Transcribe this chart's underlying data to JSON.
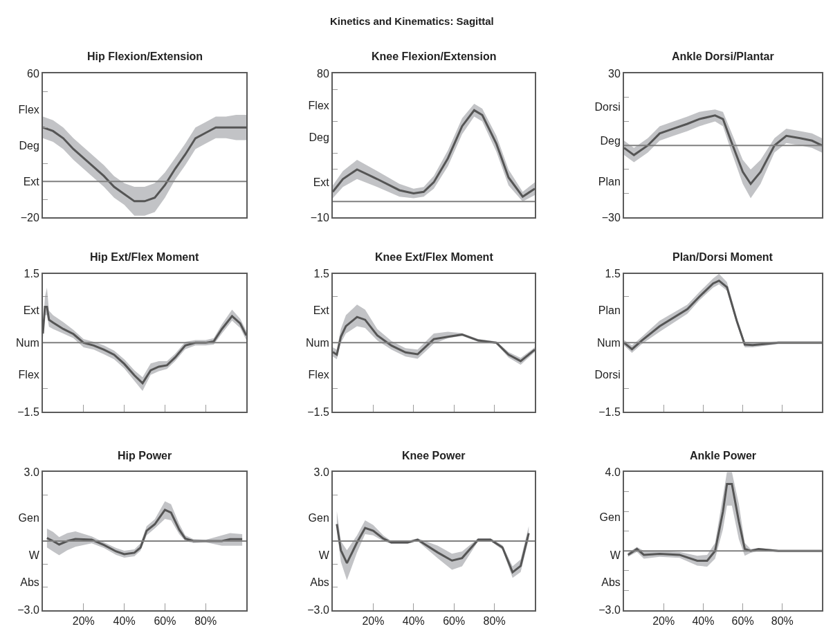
{
  "chart_data": [
    {
      "type": "line",
      "title": "Hip Flexion/Extension",
      "annotations": [
        "Kinetics and Kinematics: Sagittal"
      ],
      "xlim": [
        0,
        100
      ],
      "ylim": [
        -20,
        60
      ],
      "tick_labels": "y",
      "yticks": [
        60,
        {
          "value": 50,
          "label": null
        },
        {
          "value": 40,
          "label": "Flex"
        },
        {
          "value": 30,
          "label": null
        },
        {
          "value": 20,
          "label": "Deg"
        },
        {
          "value": 10,
          "label": null
        },
        {
          "value": 0,
          "label": "Ext"
        },
        {
          "value": -10,
          "label": null
        },
        -20
      ],
      "ref_lines": [
        {
          "axis": "y",
          "value": 0,
          "color": "#7f7f7f"
        }
      ],
      "series": [
        {
          "color": "#555555",
          "x": [
            0,
            5,
            10,
            15,
            20,
            25,
            30,
            35,
            40,
            45,
            50,
            55,
            60,
            65,
            70,
            75,
            80,
            85,
            90,
            95,
            100
          ],
          "values": [
            30,
            28,
            24,
            18,
            13,
            8,
            3,
            -3,
            -7,
            -11,
            -11,
            -9,
            -2,
            7,
            15,
            24,
            27,
            30,
            30,
            30,
            30
          ],
          "lower": [
            24,
            22,
            18,
            12,
            7,
            2,
            -3,
            -9,
            -13,
            -19,
            -19,
            -17,
            -9,
            1,
            9,
            18,
            21,
            24,
            24,
            23,
            23
          ],
          "upper": [
            36,
            34,
            30,
            24,
            19,
            14,
            9,
            3,
            -1,
            -3,
            -3,
            -1,
            5,
            13,
            21,
            30,
            33,
            36,
            36,
            37,
            37
          ]
        }
      ]
    },
    {
      "type": "line",
      "title": "Knee Flexion/Extension",
      "xlim": [
        0,
        100
      ],
      "ylim": [
        -10,
        80
      ],
      "tick_labels": "y",
      "yticks": [
        80,
        {
          "value": 70,
          "label": null
        },
        {
          "value": 60,
          "label": "Flex"
        },
        {
          "value": 50,
          "label": null
        },
        {
          "value": 40,
          "label": "Deg"
        },
        {
          "value": 30,
          "label": null
        },
        {
          "value": 20,
          "label": null
        },
        {
          "value": 12,
          "label": "Ext"
        },
        -10
      ],
      "ref_lines": [
        {
          "axis": "y",
          "value": 0,
          "color": "#7f7f7f"
        }
      ],
      "series": [
        {
          "color": "#555555",
          "x": [
            0,
            5,
            12,
            22,
            33,
            40,
            45,
            50,
            57,
            64,
            70,
            74,
            81,
            87,
            94,
            100
          ],
          "values": [
            6,
            14,
            20,
            14,
            7,
            5,
            6,
            12,
            27,
            47,
            57,
            54,
            36,
            15,
            3,
            8
          ],
          "lower": [
            2,
            9,
            14,
            9,
            3,
            2,
            3,
            8,
            22,
            42,
            53,
            50,
            31,
            10,
            0,
            4
          ],
          "upper": [
            10,
            19,
            26,
            19,
            11,
            8,
            9,
            16,
            32,
            52,
            61,
            58,
            41,
            20,
            6,
            12
          ]
        }
      ]
    },
    {
      "type": "line",
      "title": "Ankle Dorsi/Plantar",
      "xlim": [
        0,
        100
      ],
      "ylim": [
        -30,
        30
      ],
      "tick_labels": "y",
      "yticks": [
        30,
        {
          "value": 20,
          "label": null
        },
        {
          "value": 16,
          "label": "Dorsi"
        },
        {
          "value": 10,
          "label": null
        },
        {
          "value": 2,
          "label": "Deg"
        },
        {
          "value": -10,
          "label": null
        },
        {
          "value": -15,
          "label": "Plan"
        },
        {
          "value": -20,
          "label": null
        },
        -30
      ],
      "ref_lines": [
        {
          "axis": "y",
          "value": 0,
          "color": "#7f7f7f"
        }
      ],
      "series": [
        {
          "color": "#555555",
          "x": [
            0,
            5,
            12,
            18,
            25,
            32,
            38,
            46,
            50,
            54,
            60,
            64,
            69,
            76,
            82,
            89,
            95,
            100
          ],
          "values": [
            -1,
            -4,
            0,
            5,
            7,
            9,
            11,
            12.5,
            11,
            2,
            -11,
            -16,
            -11,
            0,
            4,
            3,
            2,
            0
          ],
          "lower": [
            -4,
            -7,
            -3,
            2,
            4,
            6,
            8,
            10,
            8,
            -2,
            -16,
            -22,
            -16,
            -3,
            1,
            0,
            -1,
            -3
          ],
          "upper": [
            2,
            -1,
            3,
            8,
            10,
            12,
            14,
            15,
            14,
            6,
            -6,
            -10,
            -6,
            3,
            7,
            6,
            5,
            3
          ]
        }
      ]
    },
    {
      "type": "line",
      "title": "Hip Ext/Flex Moment",
      "xlim": [
        0,
        100
      ],
      "ylim": [
        -1.5,
        1.5
      ],
      "tick_labels": "y",
      "xticks": [
        {
          "value": 20,
          "label": null
        },
        {
          "value": 40,
          "label": null
        },
        {
          "value": 60,
          "label": null
        },
        {
          "value": 80,
          "label": null
        }
      ],
      "yticks": [
        1.5,
        {
          "value": 1.0,
          "label": null
        },
        {
          "value": 0.7,
          "label": "Ext"
        },
        {
          "value": 0,
          "label": "Num"
        },
        {
          "value": -0.7,
          "label": "Flex"
        },
        {
          "value": -1.0,
          "label": null
        },
        -1.5
      ],
      "ref_lines": [
        {
          "axis": "y",
          "value": 0,
          "color": "#7f7f7f"
        }
      ],
      "series": [
        {
          "color": "#555555",
          "x": [
            0,
            1,
            2,
            3,
            5,
            10,
            15,
            20,
            25,
            30,
            35,
            40,
            45,
            49,
            53,
            57,
            61,
            65,
            70,
            75,
            80,
            84,
            88,
            93,
            97,
            100
          ],
          "values": [
            0.2,
            0.78,
            0.78,
            0.5,
            0.44,
            0.3,
            0.19,
            0,
            -0.06,
            -0.15,
            -0.26,
            -0.46,
            -0.71,
            -0.88,
            -0.6,
            -0.52,
            -0.49,
            -0.32,
            -0.06,
            0,
            0,
            0.03,
            0.3,
            0.58,
            0.42,
            0.16
          ],
          "lower": [
            0.1,
            0.6,
            0.6,
            0.35,
            0.3,
            0.2,
            0.1,
            -0.1,
            -0.15,
            -0.25,
            -0.36,
            -0.56,
            -0.83,
            -1.05,
            -0.7,
            -0.62,
            -0.57,
            -0.4,
            -0.14,
            -0.06,
            -0.06,
            -0.04,
            0.2,
            0.48,
            0.32,
            0.06
          ],
          "upper": [
            0.3,
            1.0,
            1.2,
            0.7,
            0.6,
            0.45,
            0.28,
            0.08,
            0.02,
            -0.06,
            -0.17,
            -0.36,
            -0.6,
            -0.75,
            -0.45,
            -0.4,
            -0.4,
            -0.24,
            0.02,
            0.06,
            0.06,
            0.1,
            0.4,
            0.72,
            0.52,
            0.26
          ]
        }
      ]
    },
    {
      "type": "line",
      "title": "Knee Ext/Flex Moment",
      "xlim": [
        0,
        100
      ],
      "ylim": [
        -1.5,
        1.5
      ],
      "tick_labels": "y",
      "xticks": [
        {
          "value": 20,
          "label": null
        },
        {
          "value": 40,
          "label": null
        },
        {
          "value": 60,
          "label": null
        },
        {
          "value": 80,
          "label": null
        }
      ],
      "yticks": [
        1.5,
        {
          "value": 1.0,
          "label": null
        },
        {
          "value": 0.7,
          "label": "Ext"
        },
        {
          "value": 0,
          "label": "Num"
        },
        {
          "value": -0.7,
          "label": "Flex"
        },
        {
          "value": -1.0,
          "label": null
        },
        -1.5
      ],
      "ref_lines": [
        {
          "axis": "y",
          "value": 0,
          "color": "#7f7f7f"
        }
      ],
      "series": [
        {
          "color": "#555555",
          "x": [
            0,
            2,
            4,
            6.5,
            12,
            16,
            22,
            29,
            36,
            42,
            50,
            57,
            64,
            72,
            81,
            87,
            93,
            100
          ],
          "values": [
            -0.2,
            -0.26,
            0.13,
            0.36,
            0.56,
            0.5,
            0.16,
            -0.06,
            -0.21,
            -0.25,
            0.08,
            0.13,
            0.18,
            0.05,
            0,
            -0.26,
            -0.4,
            -0.15
          ],
          "lower": [
            -0.3,
            -0.36,
            0,
            0.2,
            0.36,
            0.32,
            0.05,
            -0.15,
            -0.3,
            -0.35,
            -0.02,
            0.1,
            0.15,
            0.02,
            -0.03,
            -0.32,
            -0.48,
            -0.2
          ],
          "upper": [
            -0.1,
            -0.15,
            0.3,
            0.6,
            0.83,
            0.72,
            0.3,
            0.04,
            -0.12,
            -0.15,
            0.2,
            0.24,
            0.21,
            0.08,
            0.03,
            -0.2,
            -0.33,
            -0.1
          ]
        }
      ]
    },
    {
      "type": "line",
      "title": "Plan/Dorsi Moment",
      "xlim": [
        0,
        100
      ],
      "ylim": [
        -1.5,
        1.5
      ],
      "tick_labels": "y",
      "xticks": [
        {
          "value": 20,
          "label": null
        },
        {
          "value": 40,
          "label": null
        },
        {
          "value": 60,
          "label": null
        },
        {
          "value": 80,
          "label": null
        }
      ],
      "yticks": [
        1.5,
        {
          "value": 1.0,
          "label": null
        },
        {
          "value": 0.7,
          "label": "Plan"
        },
        {
          "value": 0,
          "label": "Num"
        },
        {
          "value": -0.7,
          "label": "Dorsi"
        },
        {
          "value": -1.0,
          "label": null
        },
        -1.5
      ],
      "ref_lines": [
        {
          "axis": "y",
          "value": 0,
          "color": "#7f7f7f"
        }
      ],
      "series": [
        {
          "color": "#555555",
          "x": [
            0,
            4,
            9,
            18,
            32,
            38,
            45,
            48,
            52,
            57,
            61,
            65,
            78,
            92,
            100
          ],
          "values": [
            0,
            -0.14,
            0.05,
            0.36,
            0.73,
            1.0,
            1.29,
            1.35,
            1.21,
            0.47,
            -0.04,
            -0.05,
            0,
            0,
            0
          ],
          "lower": [
            -0.06,
            -0.22,
            -0.03,
            0.24,
            0.63,
            0.92,
            1.2,
            1.27,
            1.13,
            0.4,
            -0.1,
            -0.1,
            -0.03,
            -0.03,
            -0.03
          ],
          "upper": [
            0.06,
            -0.06,
            0.13,
            0.48,
            0.83,
            1.1,
            1.4,
            1.5,
            1.32,
            0.55,
            0.02,
            0.0,
            0.03,
            0.03,
            0.03
          ]
        }
      ]
    },
    {
      "type": "line",
      "title": "Hip Power",
      "xlim": [
        0,
        100
      ],
      "ylim": [
        -3.0,
        3.0
      ],
      "xticks": [
        {
          "value": 20,
          "label": "20%"
        },
        {
          "value": 40,
          "label": "40%"
        },
        {
          "value": 60,
          "label": "60%"
        },
        {
          "value": 80,
          "label": "80%"
        }
      ],
      "yticks": [
        {
          "value": 3.0,
          "label": "3.0"
        },
        {
          "value": 2.0,
          "label": null
        },
        {
          "value": 1.0,
          "label": "Gen"
        },
        {
          "value": -0.6,
          "label": "W"
        },
        {
          "value": -1.0,
          "label": null
        },
        {
          "value": -1.8,
          "label": "Abs"
        },
        {
          "value": -2.0,
          "label": null
        },
        {
          "value": -3.0,
          "label": "−3.0"
        }
      ],
      "ref_lines": [
        {
          "axis": "y",
          "value": 0,
          "color": "#7f7f7f"
        }
      ],
      "series": [
        {
          "color": "#555555",
          "x": [
            2,
            5,
            8,
            12,
            16,
            24,
            30,
            36,
            40,
            45,
            48,
            51,
            55,
            60,
            63,
            67,
            70,
            74,
            80,
            88,
            92,
            98
          ],
          "values": [
            0.13,
            0,
            -0.15,
            0,
            0.09,
            0.06,
            -0.17,
            -0.45,
            -0.57,
            -0.51,
            -0.28,
            0.45,
            0.73,
            1.36,
            1.24,
            0.5,
            0.11,
            0,
            0,
            0,
            0.08,
            0.08
          ],
          "lower": [
            -0.28,
            -0.45,
            -0.62,
            -0.4,
            -0.25,
            -0.1,
            -0.3,
            -0.6,
            -0.72,
            -0.66,
            -0.42,
            0.25,
            0.55,
            0.96,
            0.9,
            0.3,
            0,
            -0.08,
            -0.05,
            -0.2,
            -0.2,
            -0.2
          ],
          "upper": [
            0.54,
            0.4,
            0.17,
            0.35,
            0.42,
            0.2,
            -0.05,
            -0.3,
            -0.42,
            -0.36,
            -0.1,
            0.65,
            0.95,
            1.73,
            1.6,
            0.75,
            0.25,
            0.08,
            0.05,
            0.25,
            0.35,
            0.3
          ]
        }
      ]
    },
    {
      "type": "line",
      "title": "Knee Power",
      "xlim": [
        0,
        100
      ],
      "ylim": [
        -3.0,
        3.0
      ],
      "xticks": [
        {
          "value": 20,
          "label": "20%"
        },
        {
          "value": 40,
          "label": "40%"
        },
        {
          "value": 60,
          "label": "60%"
        },
        {
          "value": 80,
          "label": "80%"
        }
      ],
      "yticks": [
        {
          "value": 3.0,
          "label": "3.0"
        },
        {
          "value": 2.0,
          "label": null
        },
        {
          "value": 1.0,
          "label": "Gen"
        },
        {
          "value": -0.6,
          "label": "W"
        },
        {
          "value": -1.0,
          "label": null
        },
        {
          "value": -1.8,
          "label": "Abs"
        },
        {
          "value": -2.0,
          "label": null
        },
        {
          "value": -3.0,
          "label": "−3.0"
        }
      ],
      "ref_lines": [
        {
          "axis": "y",
          "value": 0,
          "color": "#7f7f7f"
        }
      ],
      "series": [
        {
          "color": "#555555",
          "x": [
            2,
            4,
            7,
            12,
            16,
            20,
            25,
            29,
            37,
            42,
            52,
            59,
            64,
            72,
            78,
            84,
            89,
            93,
            97
          ],
          "values": [
            0.74,
            -0.4,
            -0.96,
            -0.06,
            0.57,
            0.45,
            0.11,
            -0.06,
            -0.06,
            0.06,
            -0.5,
            -0.85,
            -0.74,
            0.06,
            0.06,
            -0.28,
            -1.36,
            -1.08,
            0.34
          ],
          "lower": [
            0.5,
            -0.9,
            -1.7,
            -0.5,
            0.3,
            0.25,
            0,
            -0.12,
            -0.12,
            0,
            -0.75,
            -1.25,
            -1.1,
            0,
            0,
            -0.38,
            -1.6,
            -1.35,
            0.1
          ],
          "upper": [
            1.3,
            0,
            -0.4,
            0.25,
            0.9,
            0.7,
            0.25,
            0,
            0,
            0.12,
            -0.2,
            -0.55,
            -0.45,
            0.12,
            0.12,
            -0.18,
            -1.1,
            -0.8,
            0.65
          ]
        }
      ]
    },
    {
      "type": "line",
      "title": "Ankle Power",
      "xlim": [
        0,
        100
      ],
      "ylim": [
        -3.0,
        4.0
      ],
      "xticks": [
        {
          "value": 20,
          "label": "20%"
        },
        {
          "value": 40,
          "label": "40%"
        },
        {
          "value": 60,
          "label": "60%"
        },
        {
          "value": 80,
          "label": "80%"
        }
      ],
      "yticks": [
        {
          "value": 4.0,
          "label": "4.0"
        },
        {
          "value": 3.0,
          "label": null
        },
        {
          "value": 2.0,
          "label": null
        },
        {
          "value": 1.7,
          "label": "Gen"
        },
        {
          "value": 1.0,
          "label": null
        },
        {
          "value": -0.2,
          "label": "W"
        },
        {
          "value": -1.0,
          "label": null
        },
        {
          "value": -1.6,
          "label": "Abs"
        },
        {
          "value": -2.0,
          "label": null
        },
        {
          "value": -3.0,
          "label": "−3.0"
        }
      ],
      "ref_lines": [
        {
          "axis": "y",
          "value": 0,
          "color": "#7f7f7f"
        }
      ],
      "series": [
        {
          "color": "#555555",
          "x": [
            2,
            6.5,
            10,
            18,
            28,
            37,
            42,
            46,
            50,
            52,
            54.5,
            58,
            61,
            64,
            68,
            78,
            100
          ],
          "values": [
            -0.2,
            0.1,
            -0.2,
            -0.15,
            -0.2,
            -0.5,
            -0.5,
            0,
            2,
            3.4,
            3.4,
            1.5,
            0.1,
            0,
            0.1,
            0,
            0
          ],
          "lower": [
            -0.3,
            -0.05,
            -0.4,
            -0.3,
            -0.35,
            -0.75,
            -0.8,
            -0.4,
            1.1,
            2.3,
            2.3,
            0.6,
            -0.25,
            -0.1,
            0,
            -0.05,
            -0.05
          ],
          "upper": [
            -0.1,
            0.2,
            0,
            0,
            -0.05,
            -0.25,
            -0.2,
            0.4,
            2.8,
            4.0,
            4.0,
            2.4,
            0.4,
            0.1,
            0.15,
            0.05,
            0.05
          ]
        }
      ]
    }
  ]
}
